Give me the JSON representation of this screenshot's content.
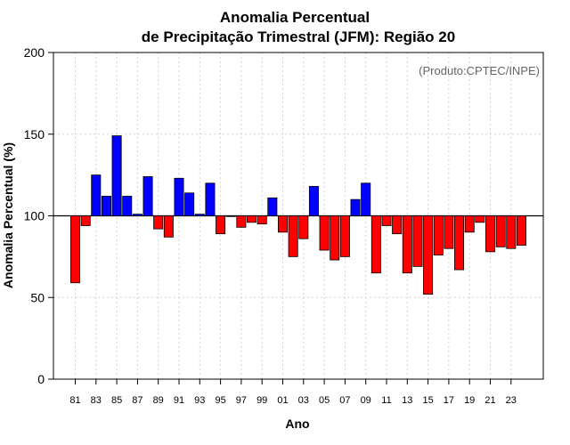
{
  "chart_data": {
    "type": "bar",
    "title": [
      "Anomalia Percentual",
      "de Precipitação Trimestral (JFM): Região 20"
    ],
    "xlabel": "Ano",
    "ylabel": "Anomalia Percentual (%)",
    "annotation": "(Produto:CPTEC/INPE)",
    "ylim": [
      0,
      200
    ],
    "yticks": [
      0,
      50,
      100,
      150,
      200
    ],
    "baseline": 100,
    "grid": true,
    "colors": {
      "above": "#0000ff",
      "below": "#ff0000",
      "baseline": "#000000",
      "grid": "#d3d3d3"
    },
    "categories": [
      "81",
      "82",
      "83",
      "84",
      "85",
      "86",
      "87",
      "88",
      "89",
      "90",
      "91",
      "92",
      "93",
      "94",
      "95",
      "96",
      "97",
      "98",
      "99",
      "00",
      "01",
      "02",
      "03",
      "04",
      "05",
      "06",
      "07",
      "08",
      "09",
      "10",
      "11",
      "12",
      "13",
      "14",
      "15",
      "16",
      "17",
      "18",
      "19",
      "20",
      "21",
      "22",
      "23",
      "24"
    ],
    "tick_labels": [
      "81",
      "83",
      "85",
      "87",
      "89",
      "91",
      "93",
      "95",
      "97",
      "99",
      "01",
      "03",
      "05",
      "07",
      "09",
      "11",
      "13",
      "15",
      "17",
      "19",
      "21",
      "23"
    ],
    "values": [
      59,
      94,
      125,
      112,
      149,
      112,
      101,
      124,
      92,
      87,
      123,
      114,
      101,
      120,
      89,
      100,
      93,
      96,
      95,
      111,
      90,
      75,
      86,
      118,
      79,
      73,
      75,
      110,
      120,
      65,
      94,
      89,
      65,
      69,
      52,
      76,
      80,
      67,
      90,
      96,
      78,
      81,
      80,
      82
    ]
  }
}
